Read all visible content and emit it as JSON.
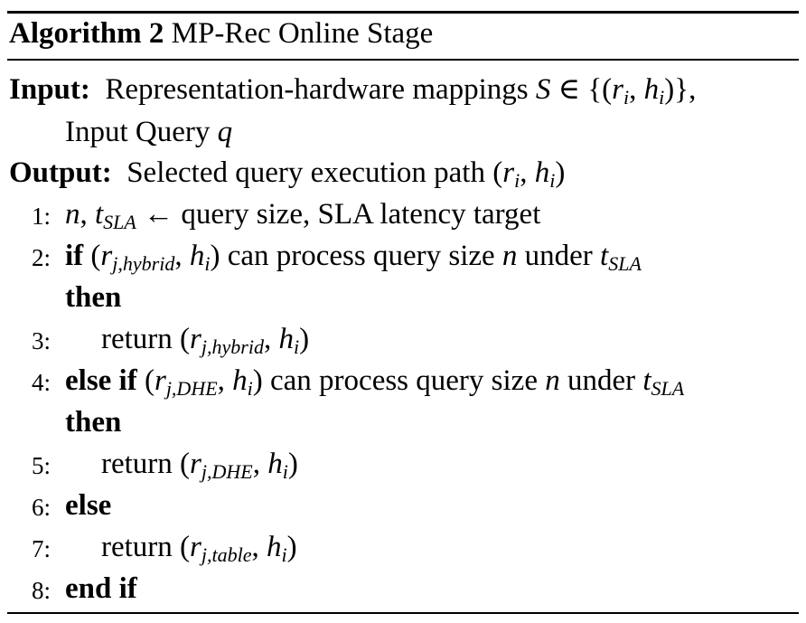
{
  "algorithm": {
    "label": "Algorithm 2",
    "title": "MP-Rec Online Stage"
  },
  "input": {
    "keyword": "Input:",
    "text1": "Representation-hardware mappings",
    "text2": "Input Query"
  },
  "output": {
    "keyword": "Output:",
    "text": "Selected query execution path"
  },
  "steps": [
    {
      "num": "1:",
      "text": "query size, SLA latency target"
    },
    {
      "num": "2:",
      "kw": "if",
      "text": "can process query size",
      "text2": "under",
      "kw2": "then"
    },
    {
      "num": "3:",
      "text": "return"
    },
    {
      "num": "4:",
      "kw": "else if",
      "text": "can process query size",
      "text2": "under",
      "kw2": "then"
    },
    {
      "num": "5:",
      "text": "return"
    },
    {
      "num": "6:",
      "kw": "else"
    },
    {
      "num": "7:",
      "text": "return"
    },
    {
      "num": "8:",
      "kw": "end if"
    }
  ]
}
